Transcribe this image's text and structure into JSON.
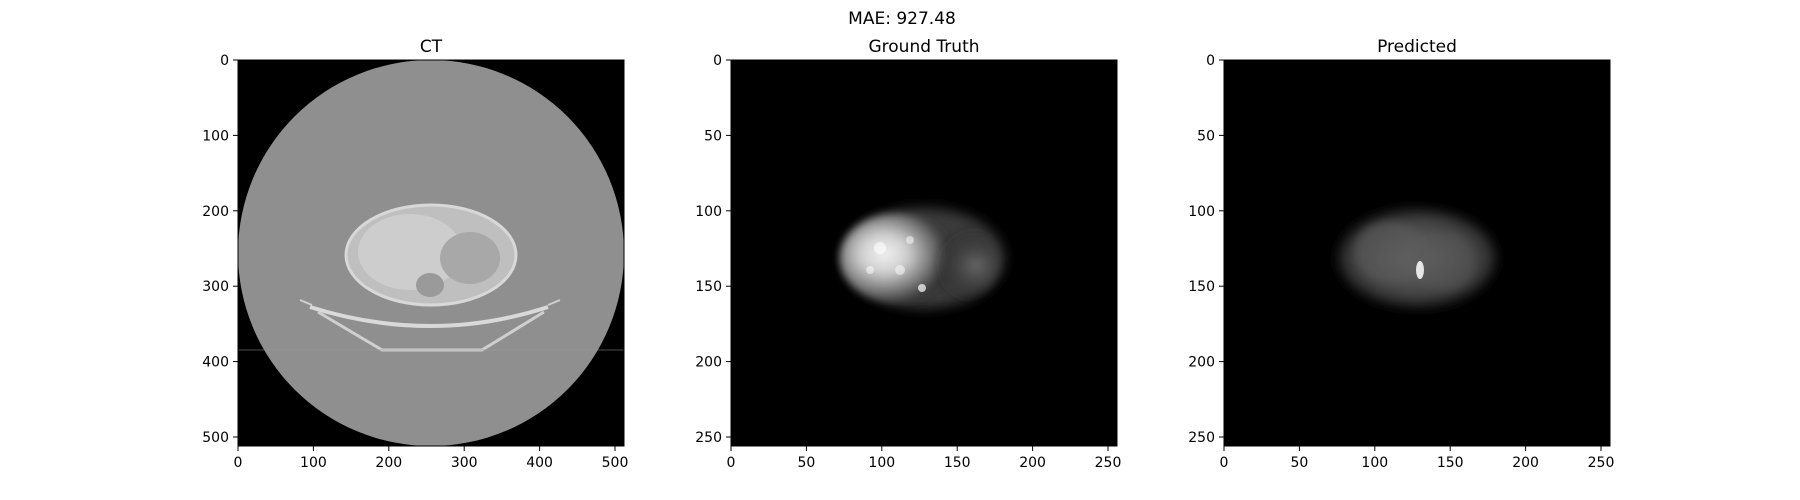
{
  "figure": {
    "suptitle": "MAE: 927.48"
  },
  "panels": [
    {
      "title": "CT",
      "x_ticks": [
        "0",
        "100",
        "200",
        "300",
        "400",
        "500"
      ],
      "y_ticks": [
        "0",
        "100",
        "200",
        "300",
        "400",
        "500"
      ],
      "x_tick_values": [
        0,
        100,
        200,
        300,
        400,
        500
      ],
      "y_tick_values": [
        0,
        100,
        200,
        300,
        400,
        500
      ],
      "extent": 512
    },
    {
      "title": "Ground Truth",
      "x_ticks": [
        "0",
        "50",
        "100",
        "150",
        "200",
        "250"
      ],
      "y_ticks": [
        "0",
        "50",
        "100",
        "150",
        "200",
        "250"
      ],
      "x_tick_values": [
        0,
        50,
        100,
        150,
        200,
        250
      ],
      "y_tick_values": [
        0,
        50,
        100,
        150,
        200,
        250
      ],
      "extent": 256
    },
    {
      "title": "Predicted",
      "x_ticks": [
        "0",
        "50",
        "100",
        "150",
        "200",
        "250"
      ],
      "y_ticks": [
        "0",
        "50",
        "100",
        "150",
        "200",
        "250"
      ],
      "x_tick_values": [
        0,
        50,
        100,
        150,
        200,
        250
      ],
      "y_tick_values": [
        0,
        50,
        100,
        150,
        200,
        250
      ],
      "extent": 256
    }
  ],
  "colors": {
    "background": "#000000",
    "ct_body": "#8f8f8f",
    "ct_tissue": "#c6c6c6",
    "pet_bright": "#ffffff"
  }
}
